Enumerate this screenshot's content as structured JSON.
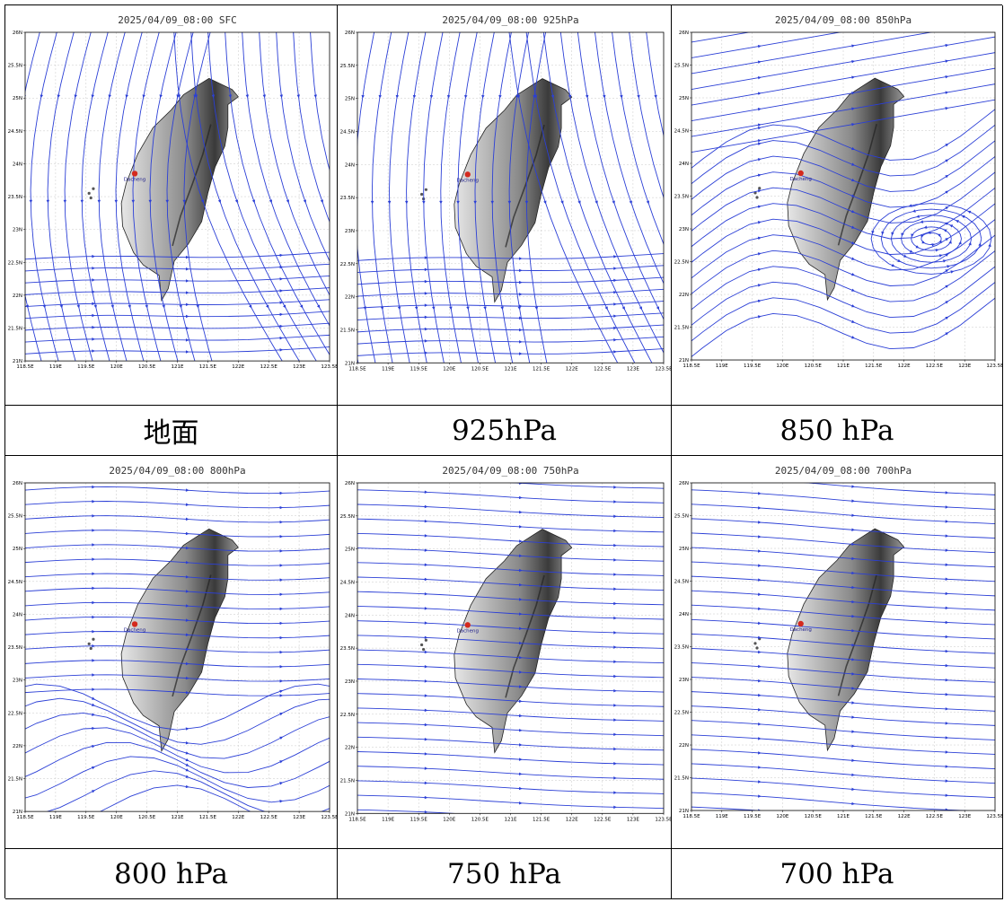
{
  "panels": [
    {
      "title": "2025/04/09_08:00 SFC",
      "caption": "地面",
      "level": "SFC",
      "flow": "sfc"
    },
    {
      "title": "2025/04/09_08:00 925hPa",
      "caption": "925hPa",
      "level": "925hPa",
      "flow": "p925"
    },
    {
      "title": "2025/04/09_08:00 850hPa",
      "caption": "850 hPa",
      "level": "850hPa",
      "flow": "p850"
    },
    {
      "title": "2025/04/09_08:00 800hPa",
      "caption": "800 hPa",
      "level": "800hPa",
      "flow": "p800"
    },
    {
      "title": "2025/04/09_08:00 750hPa",
      "caption": "750 hPa",
      "level": "750hPa",
      "flow": "p750"
    },
    {
      "title": "2025/04/09_08:00 700hPa",
      "caption": "700 hPa",
      "level": "700hPa",
      "flow": "p700"
    }
  ],
  "map": {
    "lon_range": [
      118.5,
      123.5
    ],
    "lat_range": [
      21,
      26
    ],
    "lon_ticks": [
      "118.5E",
      "119E",
      "119.5E",
      "120E",
      "120.5E",
      "121E",
      "121.5E",
      "122E",
      "122.5E",
      "123E",
      "123.5E"
    ],
    "lat_ticks": [
      "21N",
      "21.5N",
      "22N",
      "22.5N",
      "23N",
      "23.5N",
      "24N",
      "24.5N",
      "25N",
      "25.5N",
      "26N"
    ],
    "station": {
      "name": "Dacheng",
      "lon": 120.3,
      "lat": 23.85
    },
    "grid_lines": true
  },
  "colors": {
    "streamline": "#2b3fd6",
    "station": "#d42a1e",
    "terrain_high": "#3a3a3a",
    "terrain_low": "#e6e6e6",
    "coast": "#222222"
  }
}
